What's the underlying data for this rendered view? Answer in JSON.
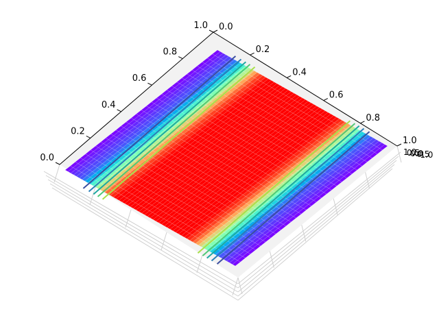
{
  "chart_data": {
    "type": "surface3d",
    "title": "",
    "xlabel": "",
    "ylabel": "",
    "zlabel": "",
    "grid": true,
    "colormap": "rainbow",
    "x_ticks": [
      "0.0",
      "0.2",
      "0.4",
      "0.6",
      "0.8",
      "1.0"
    ],
    "y_ticks": [
      "0.0",
      "0.2",
      "0.4",
      "0.6",
      "0.8",
      "1.0"
    ],
    "z_ticks_overlapping_text": [
      "1.0",
      "0.5",
      "0.0",
      "-0.5",
      "-1.0"
    ],
    "xlim": [
      0,
      1
    ],
    "ylim": [
      0,
      1
    ],
    "surface": {
      "description_of_values": "z varies along one horizontal axis only; minimum (violet) at both ends, maximum plateau (red) across the middle",
      "profile_u": [
        0.0,
        0.1,
        0.15,
        0.2,
        0.25,
        0.3,
        0.5,
        0.7,
        0.75,
        0.8,
        0.85,
        0.9,
        1.0
      ],
      "profile_value": [
        0.0,
        0.12,
        0.35,
        0.65,
        0.9,
        1.0,
        1.0,
        1.0,
        0.9,
        0.65,
        0.35,
        0.12,
        0.0
      ]
    },
    "contour_levels": [
      0.15,
      0.3,
      0.45,
      0.6,
      0.75
    ]
  },
  "colors": {
    "pane": "#f2f2f2",
    "pane_edge": "#cccccc",
    "grid": "#cfcfcf",
    "axis_line": "#000000"
  }
}
